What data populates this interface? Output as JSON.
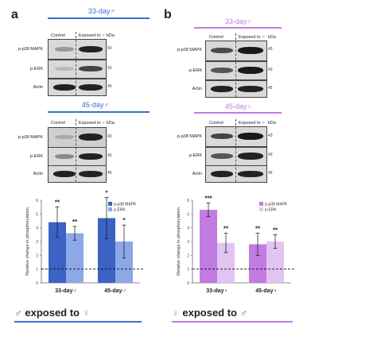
{
  "panels": [
    {
      "letter": "a",
      "accent": "#3a6fd0",
      "blots": [
        {
          "title": "33-day",
          "title_symbol": "♂",
          "columns": [
            "Control",
            "Exposed to ♀"
          ],
          "kda_label": "kDa",
          "rows": [
            {
              "label": "p-p38 MAPK",
              "kda": "43"
            },
            {
              "label": "p-ERK",
              "kda": "43"
            },
            {
              "label": "Actin",
              "kda": "45"
            }
          ]
        },
        {
          "title": "45-day",
          "title_symbol": "♂",
          "columns": [
            "Control",
            "Exposed to ♀"
          ],
          "kda_label": "kDa",
          "rows": [
            {
              "label": "p-p38 MAPK",
              "kda": "43"
            },
            {
              "label": "p-ERK",
              "kda": "43"
            },
            {
              "label": "Actin",
              "kda": "45"
            }
          ]
        }
      ],
      "exposed_text": "exposed to",
      "exposed_symbol": "♀"
    },
    {
      "letter": "b",
      "accent": "#c27be0",
      "blots": [
        {
          "title": "33-day",
          "title_symbol": "♀",
          "columns": [
            "Control",
            "Exposed to ♂"
          ],
          "kda_label": "kDa",
          "rows": [
            {
              "label": "p-p38 MAPK",
              "kda": "43"
            },
            {
              "label": "p-ERK",
              "kda": "43"
            },
            {
              "label": "Actin",
              "kda": "45"
            }
          ]
        },
        {
          "title": "45-day",
          "title_symbol": "♀",
          "columns": [
            "Control",
            "Exposed to ♂"
          ],
          "kda_label": "kDa",
          "rows": [
            {
              "label": "p-p38 MAPK",
              "kda": "43"
            },
            {
              "label": "p-ERK",
              "kda": "43"
            },
            {
              "label": "Actin",
              "kda": "45"
            }
          ]
        }
      ],
      "exposed_text": "exposed to",
      "exposed_symbol": "♂"
    }
  ],
  "chart_data": [
    {
      "type": "bar",
      "categories": [
        "33-day",
        "45-day"
      ],
      "category_symbol": "♂",
      "ylabel": "Relative change in phosphorylation",
      "ylim": [
        0,
        6
      ],
      "yticks": [
        0,
        1,
        2,
        3,
        4,
        5,
        6
      ],
      "reference_line": 1,
      "legend_position": "top-right",
      "series": [
        {
          "name": "p-p38 MAPK",
          "color": "#3a63c4",
          "values": [
            4.4,
            4.7
          ],
          "errors": [
            1.1,
            1.5
          ],
          "significance": [
            "**",
            "*"
          ]
        },
        {
          "name": "p-ERK",
          "color": "#8ca8e6",
          "values": [
            3.6,
            3.0
          ],
          "errors": [
            0.5,
            1.2
          ],
          "significance": [
            "**",
            "*"
          ]
        }
      ]
    },
    {
      "type": "bar",
      "categories": [
        "33-day",
        "45-day"
      ],
      "category_symbol": "♀",
      "ylabel": "Relative change in phosphorylation",
      "ylim": [
        0,
        6
      ],
      "yticks": [
        0,
        1,
        2,
        3,
        4,
        5,
        6
      ],
      "reference_line": 1,
      "legend_position": "top-right",
      "series": [
        {
          "name": "p-p38 MAPK",
          "color": "#c27be0",
          "values": [
            5.3,
            2.8
          ],
          "errors": [
            0.5,
            0.8
          ],
          "significance": [
            "***",
            "**"
          ]
        },
        {
          "name": "p-ERK",
          "color": "#e2c4f2",
          "values": [
            2.9,
            3.0
          ],
          "errors": [
            0.7,
            0.5
          ],
          "significance": [
            "**",
            "**"
          ]
        }
      ]
    }
  ]
}
